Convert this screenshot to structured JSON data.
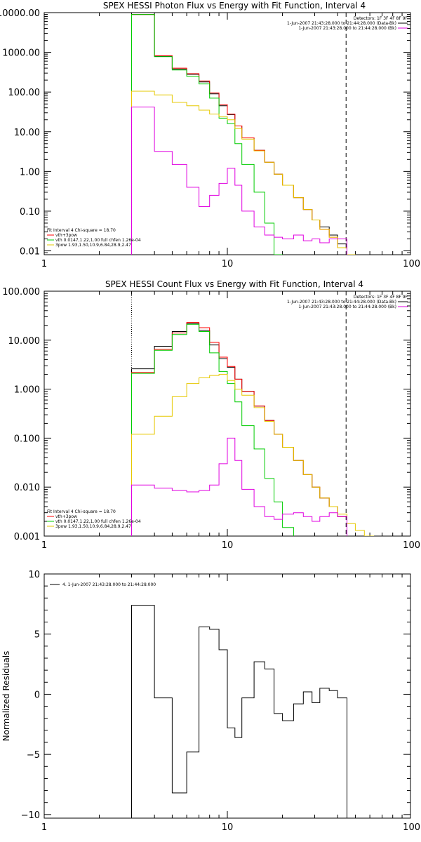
{
  "chart_data": [
    {
      "type": "line",
      "title": "SPEX HESSI Photon Flux vs Energy with Fit Function, Interval 4",
      "xscale": "log",
      "yscale": "log",
      "xlim": [
        1,
        100
      ],
      "ylim": [
        0.008,
        10000
      ],
      "xticks": [
        {
          "v": 1,
          "label": "1"
        },
        {
          "v": 10,
          "label": "10"
        },
        {
          "v": 100,
          "label": "100"
        }
      ],
      "yticks": [
        {
          "v": 10000,
          "label": "10000.00"
        },
        {
          "v": 1000,
          "label": "1000.00"
        },
        {
          "v": 100,
          "label": "100.00"
        },
        {
          "v": 10,
          "label": "10.00"
        },
        {
          "v": 1,
          "label": "1.00"
        },
        {
          "v": 0.1,
          "label": "0.10"
        },
        {
          "v": 0.01,
          "label": "0.01"
        }
      ],
      "legend_top": [
        "Detectors: 1F 3F 4F 8F 9F",
        "1-Jun-2007 21:43:28.000 to 21:44:28.000 (Data-Bk)",
        "1-Jun-2007 21:43:28.000 to 21:44:28.000 (Bk)"
      ],
      "legend_bottom": [
        "Fit Interval  4    Chi-square = 18.70",
        "vth+3pow",
        "vth 0.0147,1.22,1.00  full chfen 1.26e-04",
        "3pow 1.93,1.50,10.9,6.84,28.9,2.47"
      ],
      "edges": [
        3,
        4,
        5,
        6,
        7,
        8,
        9,
        10,
        11,
        12,
        14,
        16,
        18,
        20,
        23,
        26,
        29,
        32,
        36,
        40,
        45,
        50
      ],
      "vlines": [
        {
          "x": 3,
          "style": "dotted"
        },
        {
          "x": 44.5,
          "style": "dashed"
        }
      ],
      "series": [
        {
          "color": "#000000",
          "values": [
            9000,
            800,
            380,
            280,
            180,
            90,
            45,
            27,
            14,
            7,
            3.4,
            1.7,
            0.85,
            0.45,
            0.22,
            0.11,
            0.06,
            0.04,
            0.025,
            0.015,
            null
          ]
        },
        {
          "color": "#ff0000",
          "values": [
            9000,
            820,
            400,
            290,
            190,
            95,
            48,
            28,
            14,
            7,
            3.4,
            1.7,
            0.85,
            0.45,
            0.22,
            0.11,
            0.06,
            0.035,
            0.022,
            0.012,
            null
          ]
        },
        {
          "color": "#00cc00",
          "values": [
            9000,
            780,
            360,
            250,
            160,
            70,
            22,
            16,
            5,
            1.5,
            0.3,
            0.05,
            0.008,
            null,
            null,
            null,
            null,
            null,
            null,
            null,
            null
          ]
        },
        {
          "color": "#e6c800",
          "values": [
            105,
            85,
            55,
            45,
            35,
            28,
            24,
            20,
            12,
            6.5,
            3.3,
            1.7,
            0.85,
            0.45,
            0.22,
            0.11,
            0.06,
            0.035,
            0.022,
            0.012,
            0.008
          ]
        },
        {
          "color": "#e000e0",
          "values": [
            42,
            3.2,
            1.5,
            0.4,
            0.13,
            0.25,
            0.5,
            1.2,
            0.45,
            0.1,
            0.04,
            0.025,
            0.022,
            0.02,
            0.025,
            0.018,
            0.02,
            0.016,
            0.02,
            0.02,
            null
          ]
        }
      ]
    },
    {
      "type": "line",
      "title": "SPEX HESSI Count Flux vs Energy with Fit Function, Interval 4",
      "xscale": "log",
      "yscale": "log",
      "xlim": [
        1,
        100
      ],
      "ylim": [
        0.001,
        100
      ],
      "xticks": [
        {
          "v": 1,
          "label": "1"
        },
        {
          "v": 10,
          "label": "10"
        },
        {
          "v": 100,
          "label": "100"
        }
      ],
      "yticks": [
        {
          "v": 100,
          "label": "100.000"
        },
        {
          "v": 10,
          "label": "10.000"
        },
        {
          "v": 1,
          "label": "1.000"
        },
        {
          "v": 0.1,
          "label": "0.100"
        },
        {
          "v": 0.01,
          "label": "0.010"
        },
        {
          "v": 0.001,
          "label": "0.001"
        }
      ],
      "legend_top": [
        "Detectors: 1F 3F 4F 8F 9F",
        "1-Jun-2007 21:43:28.000 to 21:44:28.000 (Data-Bk)",
        "1-Jun-2007 21:43:28.000 to 21:44:28.000 (Bk)"
      ],
      "legend_bottom": [
        "Fit Interval  4    Chi-square = 18.70",
        "vth+3pow",
        "vth 0.0147,1.22,1.00  full chfen 1.26e-04",
        "3pow 1.93,1.50,10.9,6.84,28.9,2.47"
      ],
      "edges": [
        3,
        4,
        5,
        6,
        7,
        8,
        9,
        10,
        11,
        12,
        14,
        16,
        18,
        20,
        23,
        26,
        29,
        32,
        36,
        40,
        45,
        50,
        56,
        63
      ],
      "vlines": [
        {
          "x": 3,
          "style": "dotted"
        },
        {
          "x": 44.5,
          "style": "dashed"
        }
      ],
      "series": [
        {
          "color": "#000000",
          "values": [
            2.6,
            7.5,
            15,
            22,
            16,
            8,
            4.2,
            2.8,
            1.6,
            0.9,
            0.45,
            0.23,
            0.12,
            0.065,
            0.035,
            0.018,
            0.01,
            0.006,
            0.004,
            0.0025,
            null,
            null,
            null
          ]
        },
        {
          "color": "#ff0000",
          "values": [
            2.2,
            6.5,
            14,
            23,
            18,
            9,
            4.5,
            2.9,
            1.6,
            0.9,
            0.45,
            0.23,
            0.12,
            0.065,
            0.035,
            0.018,
            0.01,
            0.006,
            0.004,
            0.0025,
            null,
            null,
            null
          ]
        },
        {
          "color": "#00cc00",
          "values": [
            2.1,
            6.2,
            13,
            21,
            15,
            5.5,
            2.3,
            1.3,
            0.55,
            0.18,
            0.06,
            0.015,
            0.005,
            0.0015,
            null,
            null,
            null,
            null,
            null,
            null,
            null,
            null,
            null
          ]
        },
        {
          "color": "#e6c800",
          "values": [
            0.12,
            0.28,
            0.7,
            1.3,
            1.7,
            1.9,
            2.0,
            1.5,
            1.0,
            0.75,
            0.42,
            0.22,
            0.12,
            0.065,
            0.035,
            0.018,
            0.01,
            0.006,
            0.004,
            0.0028,
            0.0018,
            0.0013,
            0.001
          ]
        },
        {
          "color": "#e000e0",
          "values": [
            0.011,
            0.0095,
            0.0085,
            0.008,
            0.0085,
            0.011,
            0.03,
            0.1,
            0.035,
            0.009,
            0.004,
            0.0025,
            0.0022,
            0.0028,
            0.003,
            0.0025,
            0.002,
            0.0025,
            0.003,
            0.0025,
            null,
            null,
            null
          ]
        }
      ]
    },
    {
      "type": "line",
      "title": "",
      "ylabel": "Normalized Residuals",
      "xscale": "log",
      "yscale": "linear",
      "xlim": [
        1,
        100
      ],
      "ylim": [
        -10.3,
        10
      ],
      "xticks": [
        {
          "v": 1,
          "label": "1"
        },
        {
          "v": 10,
          "label": "10"
        },
        {
          "v": 100,
          "label": "100"
        }
      ],
      "yticks": [
        {
          "v": 10,
          "label": "10"
        },
        {
          "v": 5,
          "label": "5"
        },
        {
          "v": 0,
          "label": "0"
        },
        {
          "v": -5,
          "label": "−5"
        },
        {
          "v": -10,
          "label": "−10"
        }
      ],
      "legend_top": [
        "4.  1-Jun-2007 21:43:28.000 to 21:44:28.000"
      ],
      "edges": [
        3,
        4,
        5,
        6,
        7,
        8,
        9,
        10,
        11,
        12,
        14,
        16,
        18,
        20,
        23,
        26,
        29,
        32,
        36,
        40,
        45
      ],
      "series": [
        {
          "color": "#000000",
          "values": [
            7.4,
            -0.3,
            -8.2,
            -4.8,
            5.6,
            5.4,
            3.7,
            -2.8,
            -3.6,
            -0.3,
            2.7,
            2.1,
            -1.6,
            -2.2,
            -0.8,
            0.2,
            -0.7,
            0.5,
            0.3,
            -0.3
          ]
        }
      ]
    }
  ]
}
